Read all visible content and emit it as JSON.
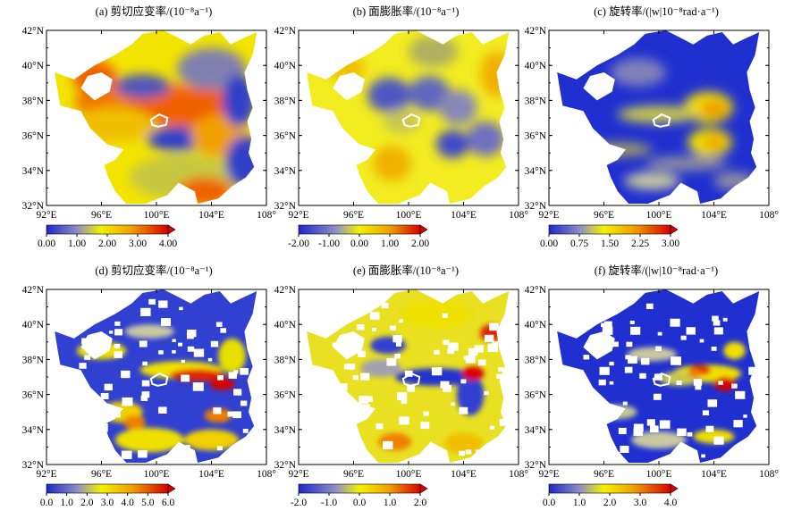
{
  "panels": [
    {
      "id": "a",
      "title": "(a) 剪切应变率/(10⁻⁸a⁻¹)",
      "scale": [
        "0.00",
        "1.00",
        "2.00",
        "3.00",
        "4.00"
      ],
      "cmap": "wyr",
      "field": "shear_smooth"
    },
    {
      "id": "b",
      "title": "(b) 面膨胀率/(10⁻⁸a⁻¹)",
      "scale": [
        "-2.00",
        "-1.00",
        "0.00",
        "1.00",
        "2.00"
      ],
      "cmap": "byr",
      "field": "dil_smooth"
    },
    {
      "id": "c",
      "title": "(c) 旋转率/(|w|10⁻⁸rad·a⁻¹)",
      "scale": [
        "0.00",
        "0.75",
        "1.50",
        "2.25",
        "3.00"
      ],
      "cmap": "wyr",
      "field": "rot_smooth"
    },
    {
      "id": "d",
      "title": "(d) 剪切应变率/(10⁻⁸a⁻¹)",
      "scale": [
        "0.0",
        "1.0",
        "2.0",
        "3.0",
        "4.0",
        "5.0",
        "6.0"
      ],
      "cmap": "wyr",
      "field": "shear_rough"
    },
    {
      "id": "e",
      "title": "(e) 面膨胀率/(10⁻⁸a⁻¹)",
      "scale": [
        "-2.0",
        "-1.0",
        "0.0",
        "1.0",
        "2.0"
      ],
      "cmap": "byr",
      "field": "dil_rough"
    },
    {
      "id": "f",
      "title": "(f) 旋转率/(|w|10⁻⁸rad·a⁻¹)",
      "scale": [
        "0.0",
        "1.0",
        "2.0",
        "3.0",
        "4.0"
      ],
      "cmap": "wyr",
      "field": "rot_rough"
    }
  ],
  "axes": {
    "lat_labels": [
      "42°N",
      "40°N",
      "38°N",
      "36°N",
      "34°N",
      "32°N"
    ],
    "lon_labels": [
      "92°E",
      "96°E",
      "100°E",
      "104°E",
      "108°"
    ],
    "lat_range": [
      32,
      42
    ],
    "lon_range": [
      92,
      108
    ]
  },
  "colors": {
    "blue": "#1c28c8",
    "yellow": "#f2f200",
    "orange": "#f07800",
    "red": "#d80000",
    "gray": "#8c8c96",
    "frame": "#000000"
  }
}
